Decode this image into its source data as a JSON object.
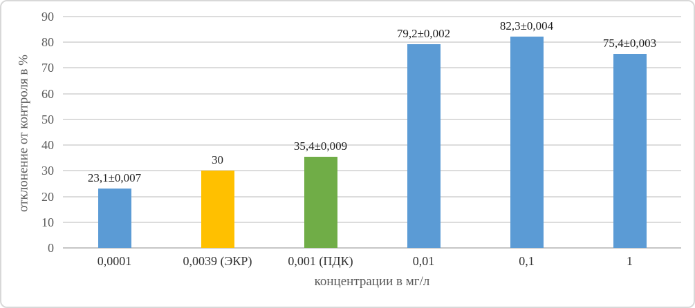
{
  "chart_data": {
    "type": "bar",
    "title": "",
    "xlabel": "концентрации в мг/л",
    "ylabel": "отклонение от контроля в %",
    "categories": [
      "0,0001",
      "0,0039 (ЭКР)",
      "0,001 (ПДК)",
      "0,01",
      "0,1",
      "1"
    ],
    "values": [
      23.1,
      30,
      35.4,
      79.2,
      82.3,
      75.4
    ],
    "data_labels": [
      "23,1±0,007",
      "30",
      "35,4±0,009",
      "79,2±0,002",
      "82,3±0,004",
      "75,4±0,003"
    ],
    "bar_colors": [
      "#5B9BD5",
      "#FFC000",
      "#70AD47",
      "#5B9BD5",
      "#5B9BD5",
      "#5B9BD5"
    ],
    "ylim": [
      0,
      90
    ],
    "yticks": [
      0,
      10,
      20,
      30,
      40,
      50,
      60,
      70,
      80,
      90
    ],
    "grid": true,
    "legend": false
  },
  "style": {
    "background": "#FFFFFF",
    "border_color": "#D8D8D8",
    "gridline_color": "#DCDCDC",
    "baseline_color": "#C6C6C6",
    "tick_label_color": "#595959",
    "category_label_color": "#333333",
    "axis_title_color": "#595959",
    "data_label_color": "#1F1F1F"
  }
}
